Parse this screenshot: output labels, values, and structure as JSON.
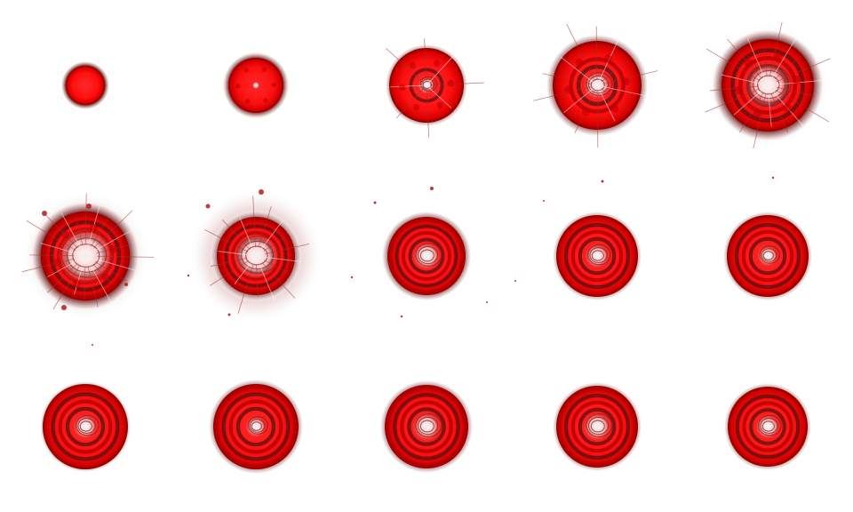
{
  "spritesheet": {
    "kind": "explosion-animation-sprite-sheet",
    "columns": 5,
    "rows": 3,
    "frame_count": 15,
    "colors": {
      "background": "#ffffff",
      "core_red": "#ff1a1a",
      "deep_red": "#b00000",
      "dark_ring": "#5a1010",
      "shadow_ring": "#7a2a2a",
      "halo": "#e9cfcf",
      "highlight": "#f4f0f0"
    },
    "frames": [
      {
        "name": "frame-01",
        "stage": "spawn"
      },
      {
        "name": "frame-02",
        "stage": "grow"
      },
      {
        "name": "frame-03",
        "stage": "grow"
      },
      {
        "name": "frame-04",
        "stage": "expand"
      },
      {
        "name": "frame-05",
        "stage": "peak"
      },
      {
        "name": "frame-06",
        "stage": "burst"
      },
      {
        "name": "frame-07",
        "stage": "shockwave"
      },
      {
        "name": "frame-08",
        "stage": "ripple"
      },
      {
        "name": "frame-09",
        "stage": "ripple"
      },
      {
        "name": "frame-10",
        "stage": "ripple"
      },
      {
        "name": "frame-11",
        "stage": "settle"
      },
      {
        "name": "frame-12",
        "stage": "settle"
      },
      {
        "name": "frame-13",
        "stage": "settle"
      },
      {
        "name": "frame-14",
        "stage": "settle"
      },
      {
        "name": "frame-15",
        "stage": "settle"
      }
    ]
  }
}
